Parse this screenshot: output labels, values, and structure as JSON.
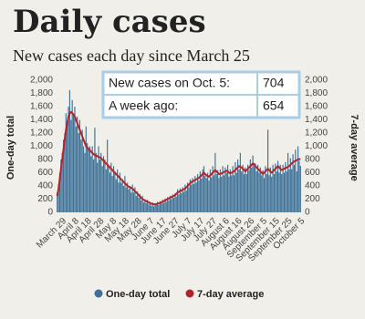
{
  "chart_data": {
    "type": "bar",
    "title": "Daily cases",
    "subtitle": "New cases each day since March 25",
    "y_label": "One-day total",
    "y2_label": "7-day average",
    "callout": {
      "rows": [
        [
          "New cases on Oct. 5:",
          "704"
        ],
        [
          "A week ago:",
          "654"
        ]
      ]
    },
    "categories": [
      null,
      null,
      null,
      null,
      "March 29",
      null,
      null,
      null,
      null,
      null,
      null,
      null,
      null,
      null,
      "April 8",
      null,
      null,
      null,
      null,
      null,
      null,
      null,
      null,
      null,
      "April 18",
      null,
      null,
      null,
      null,
      null,
      null,
      null,
      null,
      null,
      "April 28",
      null,
      null,
      null,
      null,
      null,
      null,
      null,
      null,
      null,
      "May 8",
      null,
      null,
      null,
      null,
      null,
      null,
      null,
      null,
      null,
      "May 18",
      null,
      null,
      null,
      null,
      null,
      null,
      null,
      null,
      null,
      "May 28",
      null,
      null,
      null,
      null,
      null,
      null,
      null,
      null,
      null,
      "June 7",
      null,
      null,
      null,
      null,
      null,
      null,
      null,
      null,
      null,
      "June 17",
      null,
      null,
      null,
      null,
      null,
      null,
      null,
      null,
      null,
      "June 27",
      null,
      null,
      null,
      null,
      null,
      null,
      null,
      null,
      null,
      "July 7",
      null,
      null,
      null,
      null,
      null,
      null,
      null,
      null,
      null,
      "July 17",
      null,
      null,
      null,
      null,
      null,
      null,
      null,
      null,
      null,
      "July 27",
      null,
      null,
      null,
      null,
      null,
      null,
      null,
      null,
      null,
      "August 6",
      null,
      null,
      null,
      null,
      null,
      null,
      null,
      null,
      null,
      "August 16",
      null,
      null,
      null,
      null,
      null,
      null,
      null,
      null,
      null,
      "August 26",
      null,
      null,
      null,
      null,
      null,
      null,
      null,
      null,
      null,
      "September 5",
      null,
      null,
      null,
      null,
      null,
      null,
      null,
      null,
      null,
      "September 15",
      null,
      null,
      null,
      null,
      null,
      null,
      null,
      null,
      null,
      "September 25",
      null,
      null,
      null,
      null,
      null,
      null,
      null,
      null,
      null,
      "October 5"
    ],
    "series": [
      {
        "name": "One-day total",
        "type": "bar",
        "color": "#3e7197",
        "values": [
          300,
          420,
          600,
          800,
          900,
          1100,
          1200,
          1500,
          1350,
          1600,
          1850,
          1400,
          1700,
          1500,
          1600,
          1300,
          1450,
          1200,
          1400,
          1100,
          1250,
          1000,
          900,
          1300,
          1050,
          950,
          1000,
          850,
          1000,
          800,
          1280,
          900,
          750,
          1000,
          800,
          900,
          700,
          850,
          800,
          650,
          1100,
          700,
          600,
          750,
          550,
          700,
          600,
          500,
          650,
          450,
          600,
          450,
          500,
          400,
          550,
          380,
          450,
          350,
          400,
          300,
          420,
          300,
          380,
          250,
          320,
          220,
          280,
          180,
          250,
          150,
          200,
          140,
          190,
          120,
          160,
          100,
          150,
          90,
          140,
          110,
          160,
          110,
          170,
          130,
          190,
          140,
          210,
          160,
          230,
          180,
          250,
          200,
          270,
          220,
          290,
          240,
          350,
          270,
          360,
          290,
          380,
          310,
          420,
          330,
          450,
          380,
          500,
          420,
          520,
          430,
          550,
          450,
          580,
          480,
          620,
          510,
          650,
          700,
          550,
          520,
          600,
          480,
          650,
          530,
          700,
          560,
          900,
          580,
          640,
          520,
          650,
          540,
          700,
          560,
          680,
          600,
          720,
          540,
          650,
          560,
          700,
          560,
          760,
          600,
          800,
          650,
          900,
          620,
          720,
          580,
          680,
          580,
          720,
          640,
          800,
          680,
          860,
          700,
          740,
          620,
          720,
          600,
          680,
          560,
          640,
          520,
          700,
          580,
          1250,
          560,
          680,
          540,
          720,
          580,
          740,
          620,
          780,
          600,
          720,
          580,
          720,
          600,
          760,
          620,
          900,
          650,
          820,
          654,
          880,
          720,
          950,
          620,
          1000,
          780,
          704
        ]
      },
      {
        "name": "7-day average",
        "type": "line",
        "axis": "y2",
        "color": "#b3232b",
        "values": [
          250,
          350,
          500,
          650,
          800,
          950,
          1100,
          1250,
          1350,
          1450,
          1500,
          1520,
          1500,
          1480,
          1450,
          1400,
          1350,
          1300,
          1250,
          1200,
          1150,
          1100,
          1050,
          1000,
          980,
          960,
          940,
          920,
          900,
          880,
          870,
          860,
          850,
          840,
          830,
          820,
          800,
          780,
          760,
          740,
          720,
          700,
          680,
          660,
          640,
          620,
          600,
          580,
          560,
          540,
          520,
          500,
          480,
          460,
          440,
          420,
          400,
          390,
          380,
          370,
          360,
          340,
          320,
          300,
          280,
          260,
          240,
          220,
          200,
          190,
          180,
          170,
          160,
          150,
          140,
          130,
          130,
          120,
          120,
          125,
          130,
          135,
          140,
          150,
          160,
          170,
          180,
          190,
          200,
          210,
          220,
          230,
          240,
          250,
          260,
          280,
          300,
          310,
          320,
          330,
          340,
          350,
          360,
          380,
          400,
          420,
          440,
          460,
          470,
          480,
          490,
          500,
          510,
          520,
          540,
          560,
          580,
          600,
          580,
          560,
          550,
          540,
          560,
          580,
          600,
          620,
          640,
          620,
          600,
          580,
          580,
          590,
          600,
          610,
          620,
          630,
          620,
          600,
          590,
          600,
          610,
          620,
          640,
          660,
          680,
          700,
          690,
          680,
          660,
          640,
          620,
          640,
          660,
          680,
          700,
          720,
          740,
          730,
          700,
          680,
          660,
          640,
          620,
          600,
          580,
          600,
          620,
          640,
          660,
          640,
          620,
          600,
          620,
          640,
          660,
          680,
          700,
          680,
          660,
          640,
          650,
          660,
          670,
          680,
          690,
          700,
          720,
          740,
          760,
          770,
          780,
          790,
          800,
          805,
          810
        ]
      }
    ],
    "ylim": [
      0,
      2000
    ],
    "yticks": [
      0,
      200,
      400,
      600,
      800,
      {
        "value": 1000,
        "label": "1,000"
      },
      {
        "value": 1200,
        "label": "1,200"
      },
      {
        "value": 1400,
        "label": "1,400"
      },
      {
        "value": 1600,
        "label": "1,600"
      },
      {
        "value": 1800,
        "label": "1,800"
      },
      {
        "value": 2000,
        "label": "2,000"
      }
    ],
    "y2lim": [
      0,
      2000
    ],
    "y2ticks": [
      0,
      200,
      400,
      600,
      800,
      {
        "value": 1000,
        "label": "1,000"
      },
      {
        "value": 1200,
        "label": "1,200"
      },
      {
        "value": 1400,
        "label": "1,400"
      },
      {
        "value": 1600,
        "label": "1,600"
      },
      {
        "value": 1800,
        "label": "1,800"
      },
      {
        "value": 2000,
        "label": "2,000"
      }
    ],
    "grid": false,
    "legend": "bottom"
  }
}
